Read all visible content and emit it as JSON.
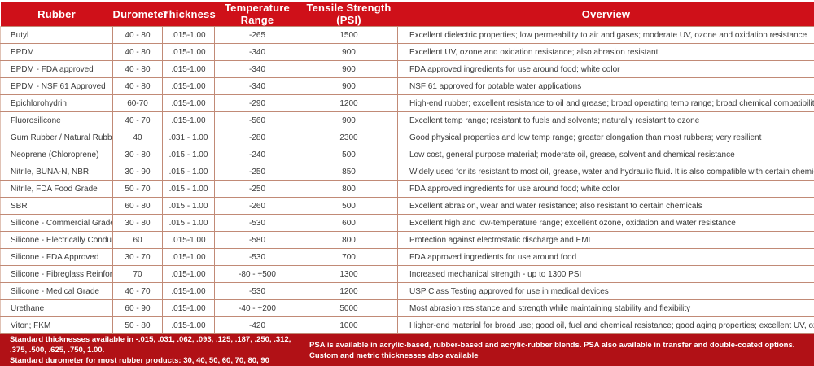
{
  "colors": {
    "header_bg": "#cf1019",
    "footer_bg": "#b11116",
    "separator": "#8e0e12",
    "grid_line": "#c18a76",
    "header_text": "#ffffff",
    "body_text": "#3a3a3a"
  },
  "table": {
    "columns": [
      "Rubber",
      "Durometer",
      "Thickness",
      "Temperature Range",
      "Tensile Strength (PSI)",
      "Overview"
    ],
    "rows": [
      {
        "rubber": "Butyl",
        "durometer": "40 - 80",
        "thickness": ".015-1.00",
        "temperature_range": "-265",
        "tensile_strength": "1500",
        "overview": "Excellent dielectric properties; low permeability to air and gases; moderate UV, ozone and oxidation resistance"
      },
      {
        "rubber": "EPDM",
        "durometer": "40 - 80",
        "thickness": ".015-1.00",
        "temperature_range": "-340",
        "tensile_strength": "900",
        "overview": "Excellent UV, ozone and oxidation resistance; also abrasion resistant"
      },
      {
        "rubber": "EPDM - FDA approved",
        "durometer": "40 - 80",
        "thickness": ".015-1.00",
        "temperature_range": "-340",
        "tensile_strength": "900",
        "overview": "FDA approved ingredients for use around food; white color"
      },
      {
        "rubber": "EPDM - NSF 61 Approved",
        "durometer": "40 - 80",
        "thickness": ".015-1.00",
        "temperature_range": "-340",
        "tensile_strength": "900",
        "overview": "NSF 61 approved for potable water applications"
      },
      {
        "rubber": "Epichlorohydrin",
        "durometer": "60-70",
        "thickness": ".015-1.00",
        "temperature_range": "-290",
        "tensile_strength": "1200",
        "overview": "High-end rubber; excellent resistance to oil and grease; broad operating temp range; broad chemical compatibility"
      },
      {
        "rubber": "Fluorosilicone",
        "durometer": "40 - 70",
        "thickness": ".015-1.00",
        "temperature_range": "-560",
        "tensile_strength": "900",
        "overview": "Excellent temp range; resistant to fuels and solvents; naturally resistant to ozone"
      },
      {
        "rubber": "Gum Rubber / Natural Rubber",
        "durometer": "40",
        "thickness": ".031 - 1.00",
        "temperature_range": "-280",
        "tensile_strength": "2300",
        "overview": "Good physical properties and low temp range; greater elongation than most rubbers; very resilient"
      },
      {
        "rubber": "Neoprene (Chloroprene)",
        "durometer": "30 - 80",
        "thickness": ".015 - 1.00",
        "temperature_range": "-240",
        "tensile_strength": "500",
        "overview": "Low cost, general purpose material; moderate oil, grease, solvent and chemical resistance"
      },
      {
        "rubber": "Nitrile, BUNA-N, NBR",
        "durometer": "30 - 90",
        "thickness": ".015 - 1.00",
        "temperature_range": "-250",
        "tensile_strength": "850",
        "overview": "Widely used for its resistant to most oil, grease, water and hydraulic fluid.  It is also compatible with certain chemicals"
      },
      {
        "rubber": "Nitrile, FDA Food Grade",
        "durometer": "50 - 70",
        "thickness": ".015 - 1.00",
        "temperature_range": "-250",
        "tensile_strength": "800",
        "overview": "FDA approved ingredients for use around food; white color"
      },
      {
        "rubber": "SBR",
        "durometer": "60 - 80",
        "thickness": ".015 - 1.00",
        "temperature_range": "-260",
        "tensile_strength": "500",
        "overview": "Excellent abrasion, wear and water resistance; also resistant to certain chemicals"
      },
      {
        "rubber": "Silicone - Commercial Grade",
        "durometer": "30 - 80",
        "thickness": ".015 - 1.00",
        "temperature_range": "-530",
        "tensile_strength": "600",
        "overview": "Excellent high and low-temperature range; excellent ozone, oxidation and water resistance"
      },
      {
        "rubber": "Silicone - Electrically Conductive",
        "durometer": "60",
        "thickness": ".015-1.00",
        "temperature_range": "-580",
        "tensile_strength": "800",
        "overview": "Protection against electrostatic discharge and EMI"
      },
      {
        "rubber": "Silicone - FDA Approved",
        "durometer": "30 - 70",
        "thickness": ".015-1.00",
        "temperature_range": "-530",
        "tensile_strength": "700",
        "overview": "FDA approved ingredients for use around food"
      },
      {
        "rubber": "Silicone - Fibreglass Reinforced",
        "durometer": "70",
        "thickness": ".015-1.00",
        "temperature_range": "-80 - +500",
        "tensile_strength": "1300",
        "overview": "Increased mechanical strength - up to 1300 PSI"
      },
      {
        "rubber": "Silicone - Medical Grade",
        "durometer": "40 - 70",
        "thickness": ".015-1.00",
        "temperature_range": "-530",
        "tensile_strength": "1200",
        "overview": "USP Class Testing approved for use in medical devices"
      },
      {
        "rubber": "Urethane",
        "durometer": "60 - 90",
        "thickness": ".015-1.00",
        "temperature_range": "-40 - +200",
        "tensile_strength": "5000",
        "overview": "Most abrasion resistance and strength while maintaining stability and flexibility"
      },
      {
        "rubber": "Viton; FKM",
        "durometer": "50 - 80",
        "thickness": ".015-1.00",
        "temperature_range": "-420",
        "tensile_strength": "1000",
        "overview": "Higher-end material for broad use; good oil, fuel and chemical resistance; good aging properties; excellent UV, ozone and oxidation resistance"
      }
    ]
  },
  "footer": {
    "left_line1": "Standard thicknesses available in -.015, .031, .062, .093, .125, .187, .250, .312, .375, .500, .625, .750, 1.00.",
    "left_line2": "Standard durometer for most rubber products: 30, 40, 50, 60, 70, 80, 90",
    "right_line1": "PSA is available in acrylic-based, rubber-based and acrylic-rubber blends. PSA also available in transfer and double-coated options.",
    "right_line2": "Custom and metric thicknesses also available"
  }
}
